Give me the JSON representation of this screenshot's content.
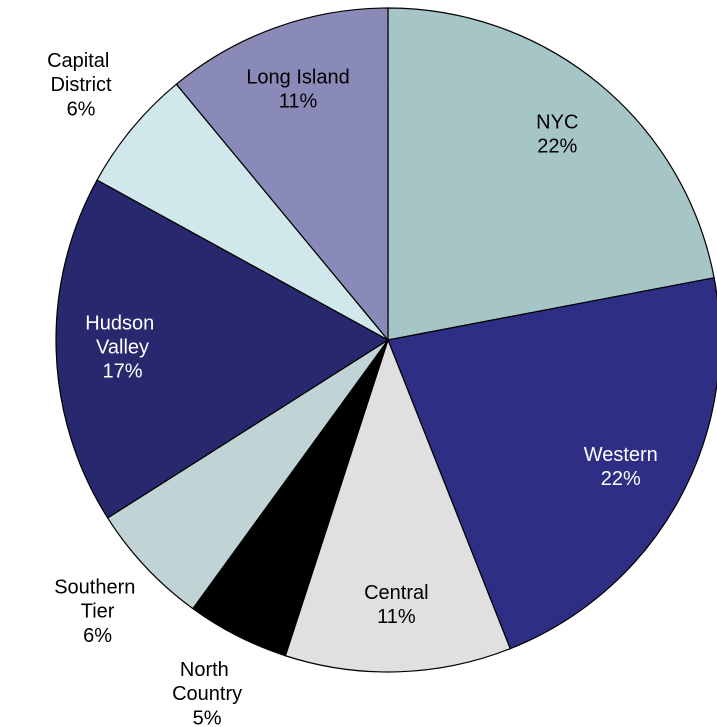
{
  "chart_data": {
    "type": "pie",
    "categories": [
      "NYC",
      "Western",
      "Central",
      "North Country",
      "Southern Tier",
      "Hudson Valley",
      "Capital District",
      "Long Island"
    ],
    "values": [
      22,
      22,
      11,
      5,
      6,
      17,
      6,
      11
    ],
    "value_labels": [
      "22%",
      "22%",
      "11%",
      "5%",
      "6%",
      "17%",
      "6%",
      "11%"
    ],
    "colors": [
      "#a6c5c6",
      "#2e2e85",
      "#e0e0e0",
      "#000000",
      "#c0d4d6",
      "#28286e",
      "#d0e8ec",
      "#8a8ab8"
    ]
  }
}
